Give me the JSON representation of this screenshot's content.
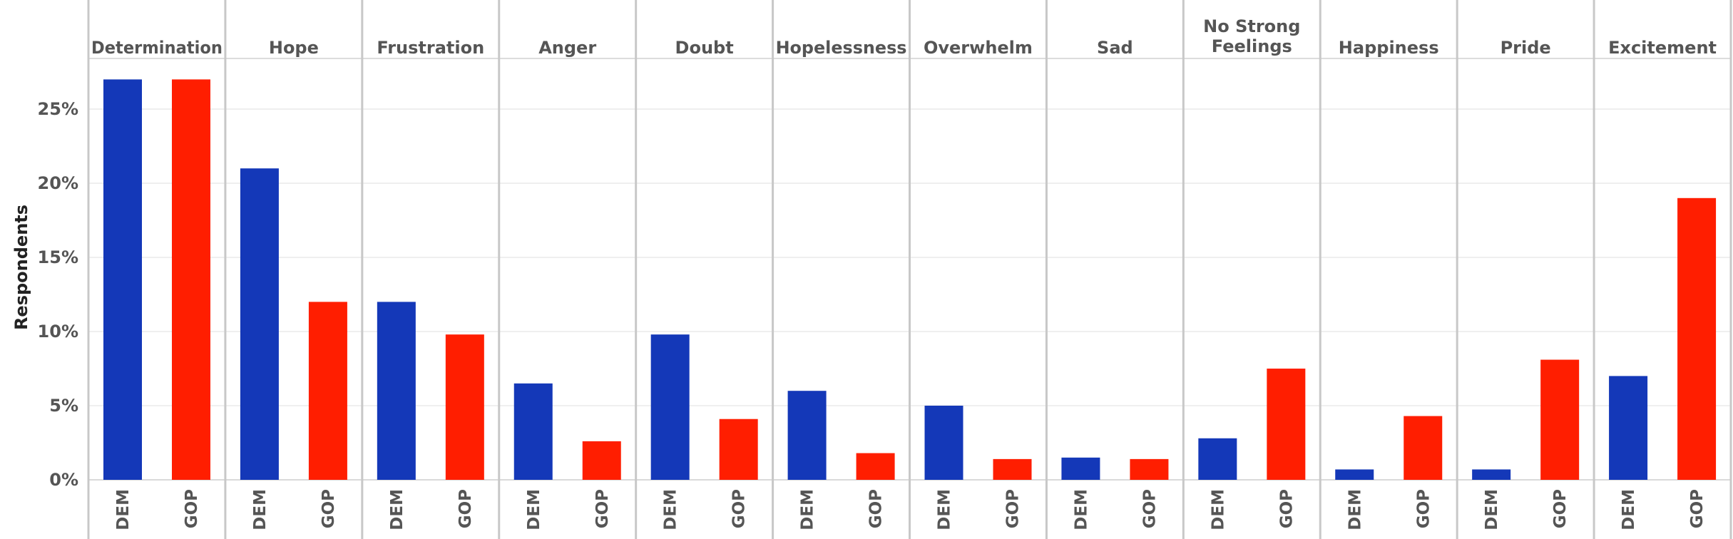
{
  "chart_data": {
    "type": "bar",
    "ylabel": "Respondents",
    "ylim": [
      0,
      28
    ],
    "yticks": [
      0,
      5,
      10,
      15,
      20,
      25
    ],
    "ytick_labels": [
      "0%",
      "5%",
      "10%",
      "15%",
      "20%",
      "25%"
    ],
    "grid": true,
    "categories": [
      "Determination",
      "Hope",
      "Frustration",
      "Anger",
      "Doubt",
      "Hopelessness",
      "Overwhelm",
      "Sad",
      "No Strong Feelings",
      "Happiness",
      "Pride",
      "Excitement"
    ],
    "series": [
      {
        "name": "DEM",
        "color": "#1438b8",
        "values": [
          27.0,
          21.0,
          12.0,
          6.5,
          9.8,
          6.0,
          5.0,
          1.5,
          2.8,
          0.7,
          0.7,
          7.0
        ]
      },
      {
        "name": "GOP",
        "color": "#ff1e00",
        "values": [
          27.0,
          12.0,
          9.8,
          2.6,
          4.1,
          1.8,
          1.4,
          1.4,
          7.5,
          4.3,
          8.1,
          19.0
        ]
      }
    ]
  }
}
